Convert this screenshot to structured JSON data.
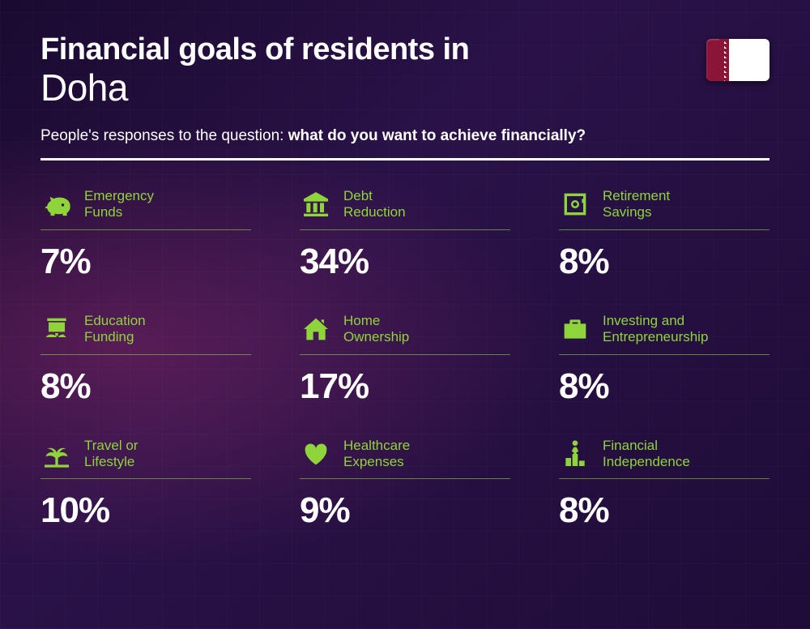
{
  "header": {
    "title_prefix": "Financial goals of residents in",
    "city": "Doha",
    "subtitle_lead": "People's responses to the question: ",
    "subtitle_bold": "what do you want to achieve financially?"
  },
  "styling": {
    "accent_color": "#8fd43a",
    "text_color": "#ffffff",
    "background_gradient": [
      "#1a0a30",
      "#2a1248",
      "#1f0c38"
    ],
    "value_fontsize": 44,
    "label_fontsize": 17,
    "grid_columns": 3
  },
  "flag": {
    "country": "Qatar",
    "colors": {
      "maroon": "#8a1538",
      "white": "#ffffff"
    }
  },
  "goals": [
    {
      "id": "emergency-funds",
      "label": "Emergency Funds",
      "value": "7%",
      "icon": "piggy-bank"
    },
    {
      "id": "debt-reduction",
      "label": "Debt Reduction",
      "value": "34%",
      "icon": "bank"
    },
    {
      "id": "retirement-savings",
      "label": "Retirement Savings",
      "value": "8%",
      "icon": "safe"
    },
    {
      "id": "education-funding",
      "label": "Education Funding",
      "value": "8%",
      "icon": "presentation"
    },
    {
      "id": "home-ownership",
      "label": "Home Ownership",
      "value": "17%",
      "icon": "house"
    },
    {
      "id": "investing-entrepreneurship",
      "label": "Investing and Entrepreneurship",
      "value": "8%",
      "icon": "briefcase"
    },
    {
      "id": "travel-lifestyle",
      "label": "Travel or Lifestyle",
      "value": "10%",
      "icon": "palm"
    },
    {
      "id": "healthcare-expenses",
      "label": "Healthcare Expenses",
      "value": "9%",
      "icon": "heart-pulse"
    },
    {
      "id": "financial-independence",
      "label": "Financial Independence",
      "value": "8%",
      "icon": "podium"
    }
  ]
}
